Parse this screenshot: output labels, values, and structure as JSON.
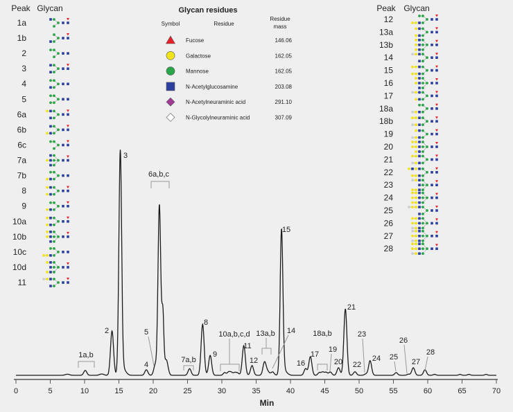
{
  "left_table": {
    "header_peak": "Peak",
    "header_glycan": "Glycan",
    "rows": [
      {
        "peak": "1a",
        "arms": [
          "MN",
          "M"
        ],
        "fuc": true
      },
      {
        "peak": "1b",
        "arms": [
          "M",
          "MN"
        ],
        "fuc": true
      },
      {
        "peak": "2",
        "arms": [
          "MM",
          "M"
        ],
        "fuc": false
      },
      {
        "peak": "3",
        "arms": [
          "MN",
          "MN"
        ],
        "fuc": true
      },
      {
        "peak": "4",
        "arms": [
          "MM",
          "MN"
        ],
        "fuc": false
      },
      {
        "peak": "5",
        "arms": [
          "MM",
          "MM"
        ],
        "fuc": false
      },
      {
        "peak": "6a",
        "arms": [
          "MNG",
          "MN"
        ],
        "fuc": true
      },
      {
        "peak": "6b",
        "arms": [
          "MN",
          "MNG"
        ],
        "fuc": true
      },
      {
        "peak": "6c",
        "arms": [
          "MM",
          "M"
        ],
        "fuc": true
      },
      {
        "peak": "7a",
        "arms": [
          "MN",
          "MNG",
          "MN"
        ],
        "fuc": true
      },
      {
        "peak": "7b",
        "arms": [
          "MM",
          "MNG"
        ],
        "fuc": false
      },
      {
        "peak": "8",
        "arms": [
          "MNG",
          "MNG"
        ],
        "fuc": true
      },
      {
        "peak": "9",
        "arms": [
          "MM",
          "MNG"
        ],
        "fuc": true
      },
      {
        "peak": "10a",
        "arms": [
          "MNG",
          "MNG"
        ],
        "fuc": true
      },
      {
        "peak": "10b",
        "arms": [
          "MNG",
          "MNG",
          "MN"
        ],
        "fuc": true
      },
      {
        "peak": "10c",
        "arms": [
          "MM",
          "MNGG"
        ],
        "fuc": false
      },
      {
        "peak": "10d",
        "arms": [
          "MNG",
          "MN",
          "MNG"
        ],
        "fuc": true
      },
      {
        "peak": "11",
        "arms": [
          "MNGS",
          "MN"
        ],
        "fuc": true
      }
    ]
  },
  "right_table": {
    "header_peak": "Peak",
    "header_glycan": "Glycan",
    "rows": [
      {
        "peak": "12",
        "arms": [
          "MM",
          "MNGG"
        ],
        "fuc": true
      },
      {
        "peak": "13a",
        "arms": [
          "MNG",
          "MNG"
        ],
        "fuc": true
      },
      {
        "peak": "13b",
        "arms": [
          "MNG",
          "MNG",
          "MNG"
        ],
        "fuc": true
      },
      {
        "peak": "14",
        "arms": [
          "MNGS",
          "MN"
        ],
        "fuc": true
      },
      {
        "peak": "15",
        "arms": [
          "MNGG",
          "MNGG"
        ],
        "fuc": true
      },
      {
        "peak": "16",
        "arms": [
          "MNG",
          "MNG",
          "MN"
        ],
        "fuc": true
      },
      {
        "peak": "17",
        "arms": [
          "MNGS",
          "MNG"
        ],
        "fuc": true
      },
      {
        "peak": "18a",
        "arms": [
          "MM",
          "MNGS"
        ],
        "fuc": true
      },
      {
        "peak": "18b",
        "arms": [
          "MNGG",
          "MNGS"
        ],
        "fuc": true
      },
      {
        "peak": "19",
        "arms": [
          "MNG",
          "MNGS"
        ],
        "fuc": true
      },
      {
        "peak": "20",
        "arms": [
          "MNGG",
          "MNGG",
          "MNG"
        ],
        "fuc": true
      },
      {
        "peak": "21",
        "arms": [
          "MNGG",
          "MNGS"
        ],
        "fuc": true
      },
      {
        "peak": "22",
        "arms": [
          "MNGNG",
          "MNGG"
        ],
        "fuc": true
      },
      {
        "peak": "23",
        "arms": [
          "MNGS",
          "MN",
          "MNGG"
        ],
        "fuc": true
      },
      {
        "peak": "24",
        "arms": [
          "MNGG",
          "MNGG",
          "MNGG"
        ],
        "fuc": true
      },
      {
        "peak": "25",
        "arms": [
          "MNGGS",
          "MN"
        ],
        "fuc": true
      },
      {
        "peak": "26",
        "arms": [
          "MNGG",
          "MNGG",
          "MNGS"
        ],
        "fuc": true
      },
      {
        "peak": "27",
        "arms": [
          "MNGS",
          "MNGG",
          "MNGS"
        ],
        "fuc": true
      },
      {
        "peak": "28",
        "arms": [
          "MNGG",
          "MNGG",
          "MNGS"
        ],
        "fuc": true
      }
    ]
  },
  "legend": {
    "title": "Glycan residues",
    "col_symbol": "Symbol",
    "col_residue": "Residue",
    "col_mass_1": "Residue",
    "col_mass_2": "mass",
    "rows": [
      {
        "symbol": "triangle",
        "color": "#e8202a",
        "residue": "Fucose",
        "mass": "146.06"
      },
      {
        "symbol": "circle",
        "color": "#f2e418",
        "residue": "Galactose",
        "mass": "162.05"
      },
      {
        "symbol": "circle",
        "color": "#2aa548",
        "residue": "Mannose",
        "mass": "162.05"
      },
      {
        "symbol": "square",
        "color": "#2b3f9e",
        "residue": "N-Acetylglucosamine",
        "mass": "203.08"
      },
      {
        "symbol": "diamond",
        "color": "#a13a96",
        "residue": "N-Acetylneuraminic acid",
        "mass": "291.10"
      },
      {
        "symbol": "diamond",
        "color": "#ffffff",
        "residue": "N-Glycolylneuraminic acid",
        "mass": "307.09"
      }
    ]
  },
  "chart_data": {
    "type": "line",
    "xlabel": "Min",
    "ylabel": "",
    "xlim": [
      0,
      70
    ],
    "xticks": [
      0,
      5,
      10,
      15,
      20,
      25,
      30,
      35,
      40,
      45,
      50,
      55,
      60,
      65,
      70
    ],
    "grid": false,
    "line_color": "#1a1a1a",
    "peaks": [
      {
        "label": "1a,b",
        "rt": 10.1,
        "height": 2.2
      },
      {
        "label": "2",
        "rt": 14.0,
        "height": 20
      },
      {
        "label": "3",
        "rt": 15.2,
        "height": 100
      },
      {
        "label": "4",
        "rt": 19.0,
        "height": 2.5
      },
      {
        "label": "5",
        "rt": 20.3,
        "height": 4.7
      },
      {
        "label": "6a,b,c",
        "rt": 20.9,
        "height": 77
      },
      {
        "label": "7a,b",
        "rt": 25.3,
        "height": 3
      },
      {
        "label": "8",
        "rt": 27.2,
        "height": 23
      },
      {
        "label": "9",
        "rt": 28.3,
        "height": 9
      },
      {
        "label": "10a,b,c,d",
        "rt": 31.0,
        "height": 1.5
      },
      {
        "label": "11",
        "rt": 33.2,
        "height": 13.4
      },
      {
        "label": "12",
        "rt": 34.4,
        "height": 4.4
      },
      {
        "label": "13a,b",
        "rt": 36.2,
        "height": 5.3
      },
      {
        "label": "14",
        "rt": 37.4,
        "height": 1.5
      },
      {
        "label": "15",
        "rt": 38.7,
        "height": 65
      },
      {
        "label": "16",
        "rt": 42.2,
        "height": 3
      },
      {
        "label": "17",
        "rt": 42.9,
        "height": 8.4
      },
      {
        "label": "18a,b",
        "rt": 44.7,
        "height": 1.5
      },
      {
        "label": "19",
        "rt": 45.8,
        "height": 1.5
      },
      {
        "label": "20",
        "rt": 47.0,
        "height": 3.4
      },
      {
        "label": "21",
        "rt": 48.0,
        "height": 30
      },
      {
        "label": "22",
        "rt": 49.4,
        "height": 1.6
      },
      {
        "label": "23",
        "rt": 51.0,
        "height": 0.6
      },
      {
        "label": "24",
        "rt": 51.6,
        "height": 6.6
      },
      {
        "label": "25",
        "rt": 55.4,
        "height": 1.2
      },
      {
        "label": "26",
        "rt": 57.2,
        "height": 0.5
      },
      {
        "label": "27",
        "rt": 57.9,
        "height": 3.4
      },
      {
        "label": "28",
        "rt": 59.6,
        "height": 2.5
      }
    ]
  }
}
